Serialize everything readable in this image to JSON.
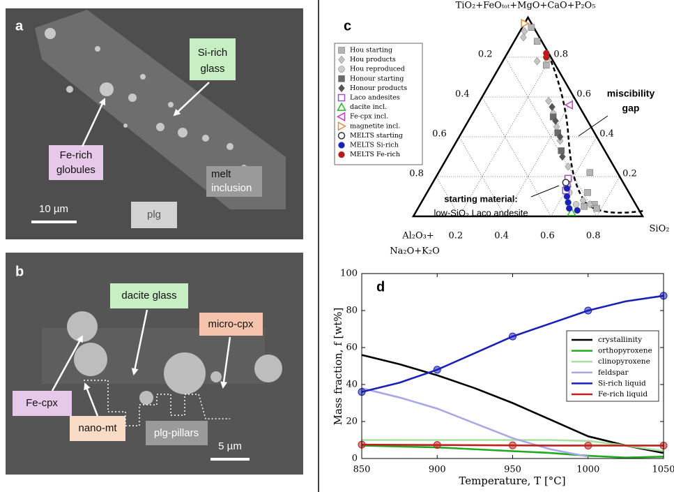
{
  "panel_a": {
    "letter": "a",
    "labels": [
      {
        "lines": [
          "Si-rich",
          "glass"
        ]
      },
      {
        "lines": [
          "Fe-rich",
          "globules"
        ]
      },
      {
        "lines": [
          "melt",
          "inclusion"
        ]
      },
      {
        "lines": [
          "plg"
        ]
      }
    ],
    "scale_bar": "10 µm"
  },
  "panel_b": {
    "letter": "b",
    "labels": [
      {
        "lines": [
          "dacite glass"
        ]
      },
      {
        "lines": [
          "micro-cpx"
        ]
      },
      {
        "lines": [
          "Fe-cpx"
        ]
      },
      {
        "lines": [
          "nano-mt"
        ]
      },
      {
        "lines": [
          "plg-pillars"
        ]
      }
    ],
    "scale_bar": "5 µm"
  },
  "panel_c": {
    "letter": "c",
    "apex_top": "TiO₂+FeOₜₒₜ+MgO+CaO+P₂O₅",
    "apex_left": [
      "Al₂O₃+",
      "Na₂O+K₂O"
    ],
    "apex_right": "SiO₂",
    "ticks": [
      0.2,
      0.4,
      0.6,
      0.8
    ],
    "annotations": {
      "gap": [
        "miscibility",
        "gap"
      ],
      "start": [
        "starting material:",
        "low-SiO₂ Laco andesite"
      ]
    },
    "groups": [
      {
        "name": "Hou starting",
        "marker": "square",
        "color": "#b4b4b4",
        "filled": true,
        "points": [
          [
            0.72,
            0.05
          ],
          [
            0.76,
            0.06
          ],
          [
            0.78,
            0.04
          ],
          [
            0.7,
            0.12
          ],
          [
            0.66,
            0.22
          ],
          [
            0.2,
            0.76
          ],
          [
            0.1,
            0.88
          ],
          [
            0.04,
            0.95
          ]
        ]
      },
      {
        "name": "Hou products",
        "marker": "diamond",
        "color": "#c4c4c4",
        "filled": true,
        "points": [
          [
            0.02,
            0.93
          ],
          [
            0.03,
            0.9
          ],
          [
            0.15,
            0.78
          ],
          [
            0.3,
            0.58
          ],
          [
            0.35,
            0.52
          ],
          [
            0.4,
            0.45
          ],
          [
            0.45,
            0.38
          ],
          [
            0.55,
            0.25
          ],
          [
            0.7,
            0.08
          ],
          [
            0.74,
            0.06
          ]
        ]
      },
      {
        "name": "Hou reproduced",
        "marker": "circle",
        "color": "#cccccc",
        "filled": true,
        "points": [
          [
            0.19,
            0.79
          ],
          [
            0.62,
            0.12
          ],
          [
            0.68,
            0.06
          ]
        ]
      },
      {
        "name": "Honour starting",
        "marker": "square",
        "color": "#6a6a6a",
        "filled": true,
        "points": [
          [
            0.36,
            0.5
          ],
          [
            0.42,
            0.42
          ],
          [
            0.48,
            0.33
          ]
        ]
      },
      {
        "name": "Honour products",
        "marker": "diamond",
        "color": "#555555",
        "filled": true,
        "points": [
          [
            0.33,
            0.55
          ],
          [
            0.38,
            0.48
          ],
          [
            0.44,
            0.4
          ],
          [
            0.5,
            0.3
          ],
          [
            0.6,
            0.15
          ]
        ]
      },
      {
        "name": "Laco andesites",
        "marker": "square",
        "color": "#a050c0",
        "filled": false,
        "points": [
          [
            0.58,
            0.19
          ],
          [
            0.59,
            0.16
          ],
          [
            0.6,
            0.13
          ]
        ]
      },
      {
        "name": "dacite incl.",
        "marker": "triangle-up",
        "color": "#22bb22",
        "filled": false,
        "points": [
          [
            0.68,
            0.02
          ]
        ]
      },
      {
        "name": "Fe-cpx incl.",
        "marker": "triangle-left",
        "color": "#c040c0",
        "filled": false,
        "points": [
          [
            0.4,
            0.56
          ]
        ]
      },
      {
        "name": "magnetite incl.",
        "marker": "triangle-right",
        "color": "#e09040",
        "filled": false,
        "points": [
          [
            0.0,
            0.97
          ]
        ]
      },
      {
        "name": "MELTS starting",
        "marker": "circle",
        "color": "#333333",
        "filled": false,
        "points": [
          [
            0.58,
            0.17
          ]
        ]
      },
      {
        "name": "MELTS Si-rich",
        "marker": "circle",
        "color": "#1820c0",
        "filled": true,
        "points": [
          [
            0.6,
            0.14
          ],
          [
            0.62,
            0.1
          ],
          [
            0.64,
            0.07
          ],
          [
            0.66,
            0.04
          ],
          [
            0.7,
            0.03
          ]
        ]
      },
      {
        "name": "MELTS Fe-rich",
        "marker": "circle",
        "color": "#c01818",
        "filled": true,
        "points": [
          [
            0.18,
            0.8
          ],
          [
            0.17,
            0.82
          ]
        ]
      }
    ]
  },
  "chart_data": {
    "type": "line",
    "label": "d",
    "x_label": "Temperature, T [°C]",
    "y_label": "Mass fraction, f [wt%]",
    "x": [
      850,
      875,
      900,
      925,
      950,
      975,
      1000,
      1025,
      1050
    ],
    "xlim": [
      850,
      1050
    ],
    "xticks": [
      850,
      900,
      950,
      1000,
      1050
    ],
    "ylim": [
      0,
      100
    ],
    "yticks": [
      0,
      20,
      40,
      60,
      80,
      100
    ],
    "series": [
      {
        "name": "crystallinity",
        "color": "#000000",
        "values": [
          56,
          51,
          45,
          38,
          30,
          21,
          12,
          7,
          3
        ]
      },
      {
        "name": "orthopyroxene",
        "color": "#22aa22",
        "values": [
          7,
          6.5,
          6,
          5,
          4,
          3,
          1.5,
          0.5,
          1
        ]
      },
      {
        "name": "clinopyroxene",
        "color": "#a8e0a0",
        "values": [
          10,
          10,
          10,
          10,
          10,
          10,
          9.5,
          7,
          4
        ]
      },
      {
        "name": "feldspar",
        "color": "#a8a8e8",
        "values": [
          38,
          33,
          27,
          19,
          11,
          5,
          1,
          null,
          null
        ]
      },
      {
        "name": "Si-rich liquid",
        "color": "#1820b8",
        "values": [
          36,
          41,
          48,
          57,
          66,
          73,
          80,
          85,
          88
        ],
        "markers": true
      },
      {
        "name": "Fe-rich liquid",
        "color": "#c02020",
        "values": [
          7.5,
          7.4,
          7.3,
          7.2,
          7.1,
          7,
          7,
          7,
          7
        ],
        "markers": true
      }
    ]
  }
}
